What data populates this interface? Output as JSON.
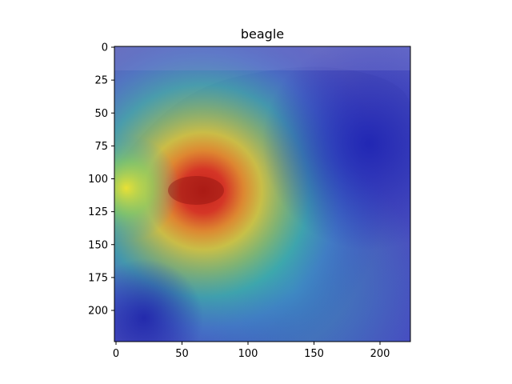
{
  "figure": {
    "title": "beagle",
    "image_description_subject": "beagle",
    "x_axis": {
      "ticks": [
        0,
        50,
        100,
        150,
        200
      ],
      "range": [
        0,
        224
      ]
    },
    "y_axis": {
      "ticks": [
        0,
        25,
        50,
        75,
        100,
        125,
        150,
        175,
        200
      ],
      "range": [
        0,
        224
      ],
      "inverted": true
    },
    "colormap": "jet",
    "heatmap_peak": {
      "x": 65,
      "y": 120
    }
  }
}
